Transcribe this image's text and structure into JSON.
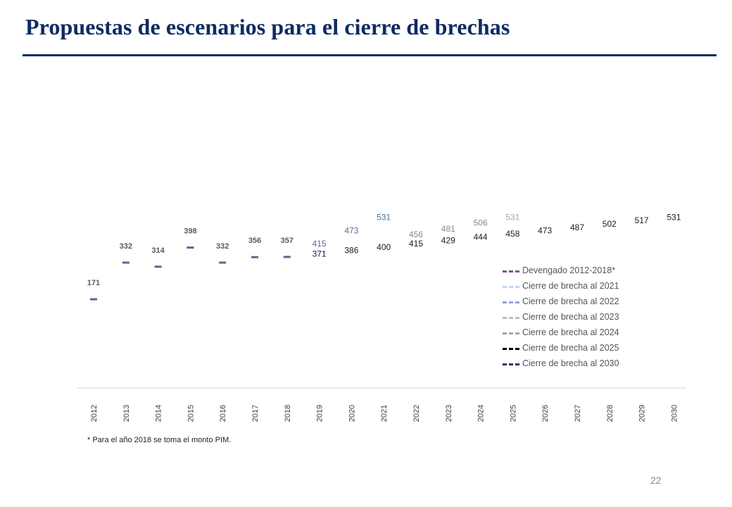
{
  "page": {
    "title": "Propuestas de escenarios para el cierre de brechas",
    "footnote": "* Para el año 2018 se toma el monto PIM.",
    "page_number": "22"
  },
  "colors": {
    "title": "#0e2b63",
    "devengado": "#7b5594",
    "c2021": "#bdd7ee",
    "c2022": "#8eaadb",
    "c2023": "#bfbfbf",
    "c2024": "#a6a6a6",
    "c2025": "#000000",
    "c2030": "#1f3864"
  },
  "chart_data": {
    "type": "line",
    "x": [
      "2012",
      "2013",
      "2014",
      "2015",
      "2016",
      "2017",
      "2018",
      "2019",
      "2020",
      "2021",
      "2022",
      "2023",
      "2024",
      "2025",
      "2026",
      "2027",
      "2028",
      "2029",
      "2030"
    ],
    "grid": false,
    "legend_position": "bottom-right",
    "series": [
      {
        "name": "Devengado 2012-2018*",
        "color": "#7b5594",
        "label_color": "#595959",
        "bold": true,
        "marker_only": true,
        "points": [
          [
            "2012",
            171
          ],
          [
            "2013",
            332
          ],
          [
            "2014",
            314
          ],
          [
            "2015",
            398
          ],
          [
            "2016",
            332
          ],
          [
            "2017",
            356
          ],
          [
            "2018",
            357
          ]
        ]
      },
      {
        "name": "Cierre de brecha al 2021",
        "color": "#bdd7ee",
        "label_color": "#4f6e95",
        "points": [
          [
            "2019",
            415
          ],
          [
            "2020",
            473
          ],
          [
            "2021",
            531
          ]
        ]
      },
      {
        "name": "Cierre de brecha al 2022",
        "color": "#8eaadb",
        "label_color": "#8a8a8a",
        "points": [
          [
            "2022",
            456
          ]
        ]
      },
      {
        "name": "Cierre de brecha al 2023",
        "color": "#bfbfbf",
        "label_color": "#8a8a8a",
        "points": [
          [
            "2023",
            481
          ]
        ]
      },
      {
        "name": "Cierre de brecha al 2024",
        "color": "#a6a6a6",
        "label_color": "#8a8a8a",
        "points": [
          [
            "2024",
            506
          ]
        ]
      },
      {
        "name": "Cierre de brecha al 2025",
        "color": "#000000",
        "label_color": "#a6a6a6",
        "points": [
          [
            "2025",
            531
          ]
        ]
      },
      {
        "name": "Cierre de brecha al 2030",
        "color": "#1f3864",
        "label_color": "#1a1a1a",
        "points": [
          [
            "2019",
            371
          ],
          [
            "2020",
            386
          ],
          [
            "2021",
            400
          ],
          [
            "2022",
            415
          ],
          [
            "2023",
            429
          ],
          [
            "2024",
            444
          ],
          [
            "2025",
            458
          ],
          [
            "2026",
            473
          ],
          [
            "2027",
            487
          ],
          [
            "2028",
            502
          ],
          [
            "2029",
            517
          ],
          [
            "2030",
            531
          ]
        ]
      }
    ]
  }
}
